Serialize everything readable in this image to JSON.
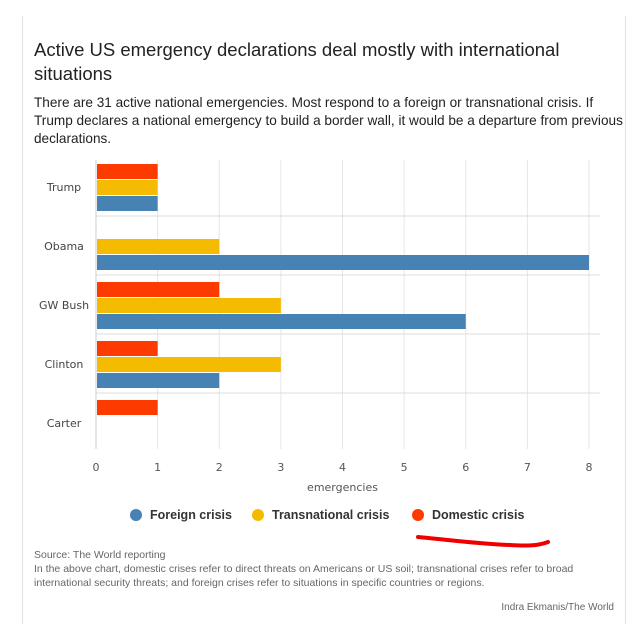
{
  "title": "Active US emergency declarations deal mostly with international situations",
  "subtitle": "There are 31 active national emergencies. Most respond to a foreign or transnational crisis. If Trump declares a national emergency to build a border wall, it would be a departure from previous declarations.",
  "source_line": "Source: The World reporting",
  "note": "In the above chart, domestic crises refer to direct threats on Americans or US soil; transnational crises refer to broad international security threats; and foreign crises refer to situations in specific countries or regions.",
  "credit": "Indra Ekmanis/The World",
  "colors": {
    "foreign": "#4682b4",
    "transnational": "#f5bb00",
    "domestic": "#fd3b00",
    "annotation": "#ee0000"
  },
  "legend": [
    {
      "key": "foreign",
      "label": "Foreign crisis"
    },
    {
      "key": "transnational",
      "label": "Transnational crisis"
    },
    {
      "key": "domestic",
      "label": "Domestic crisis"
    }
  ],
  "chart_data": {
    "type": "bar",
    "orientation": "horizontal",
    "categories": [
      "Trump",
      "Obama",
      "GW Bush",
      "Clinton",
      "Carter"
    ],
    "series": [
      {
        "name": "Domestic crisis",
        "key": "domestic",
        "values": [
          1,
          0,
          2,
          1,
          1
        ]
      },
      {
        "name": "Transnational crisis",
        "key": "transnational",
        "values": [
          1,
          2,
          3,
          3,
          0
        ]
      },
      {
        "name": "Foreign crisis",
        "key": "foreign",
        "values": [
          1,
          8,
          6,
          2,
          0
        ]
      }
    ],
    "xlabel": "emergencies",
    "xlim": [
      0,
      8
    ],
    "xticks": [
      "0",
      "1",
      "2",
      "3",
      "4",
      "5",
      "6",
      "7",
      "8"
    ],
    "grid": true,
    "legend_position": "bottom"
  }
}
